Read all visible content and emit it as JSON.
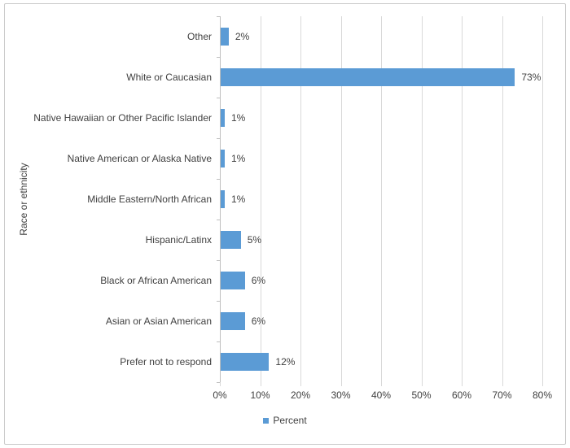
{
  "chart_data": {
    "type": "bar",
    "orientation": "horizontal",
    "title": "",
    "xlabel": "",
    "ylabel": "Race or ethnicity",
    "categories": [
      "Other",
      "White or Caucasian",
      "Native Hawaiian or Other Pacific Islander",
      "Native American or Alaska Native",
      "Middle Eastern/North African",
      "Hispanic/Latinx",
      "Black or African American",
      "Asian or Asian American",
      "Prefer not to respond"
    ],
    "values": [
      2,
      73,
      1,
      1,
      1,
      5,
      6,
      6,
      12
    ],
    "data_labels": [
      "2%",
      "73%",
      "1%",
      "1%",
      "1%",
      "5%",
      "6%",
      "6%",
      "12%"
    ],
    "x_ticks": [
      "0%",
      "10%",
      "20%",
      "30%",
      "40%",
      "50%",
      "60%",
      "70%",
      "80%"
    ],
    "xlim": [
      0,
      80
    ],
    "grid": true,
    "legend_position": "bottom",
    "legend": [
      {
        "label": "Percent",
        "color": "#5b9bd5"
      }
    ],
    "colors": {
      "bar": "#5b9bd5",
      "gridline": "#d9d9d9",
      "axis": "#bfbfbf",
      "text": "#404040",
      "border": "#cbcbcb"
    }
  }
}
